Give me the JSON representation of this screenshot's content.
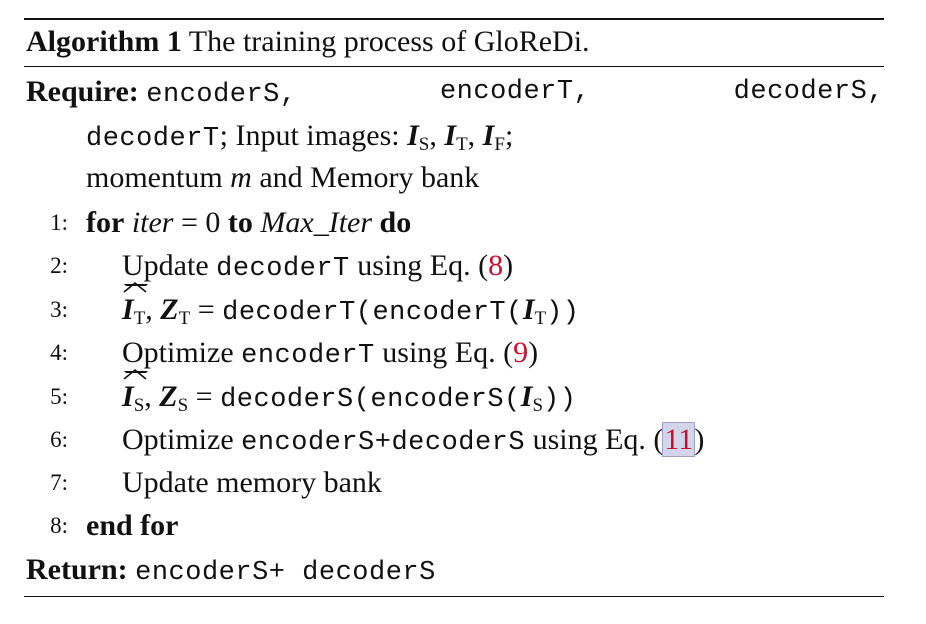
{
  "algorithm": {
    "label": "Algorithm 1",
    "title": "The training process of GloReDi."
  },
  "require": {
    "keyword": "Require:",
    "encoderS": "encoderS,",
    "encoderT": "encoderT,",
    "decoderS": "decoderS,",
    "decoderT": "decoderT",
    "inputs_text": "; Input images: ",
    "I": "I",
    "sub_S": "S",
    "sub_T": "T",
    "sub_F": "F",
    "comma": ",",
    "semicolon": ";",
    "momentum": "momentum ",
    "m": "m",
    "memory": " and Memory bank"
  },
  "lines": {
    "n1": "1:",
    "n2": "2:",
    "n3": "3:",
    "n4": "4:",
    "n5": "5:",
    "n6": "6:",
    "n7": "7:",
    "n8": "8:",
    "for_kw": "for",
    "iter": "iter",
    "eq_zero": " = 0 ",
    "to_kw": "to",
    "max_iter": "Max_Iter",
    "do_kw": "do",
    "update": "Update ",
    "decoderT": "decoderT",
    "using_eq": " using Eq. (",
    "ref8": "8",
    "ref9": "9",
    "ref11": "11",
    "close": ")",
    "I": "I",
    "Z": "Z",
    "sub_T": "T",
    "sub_S": "S",
    "equals": " = ",
    "decoderT_open": "decoderT(",
    "encoderT_open": "encoderT(",
    "close2": "))",
    "optimize": "Optimize ",
    "encoderT": "encoderT",
    "decoderS_open": "decoderS(",
    "encoderS_open": "encoderS(",
    "encS_decS": "encoderS+decoderS",
    "update_memory": "Update memory bank",
    "end_for": "end for"
  },
  "return": {
    "keyword": "Return:",
    "value": "encoderS+ decoderS"
  }
}
